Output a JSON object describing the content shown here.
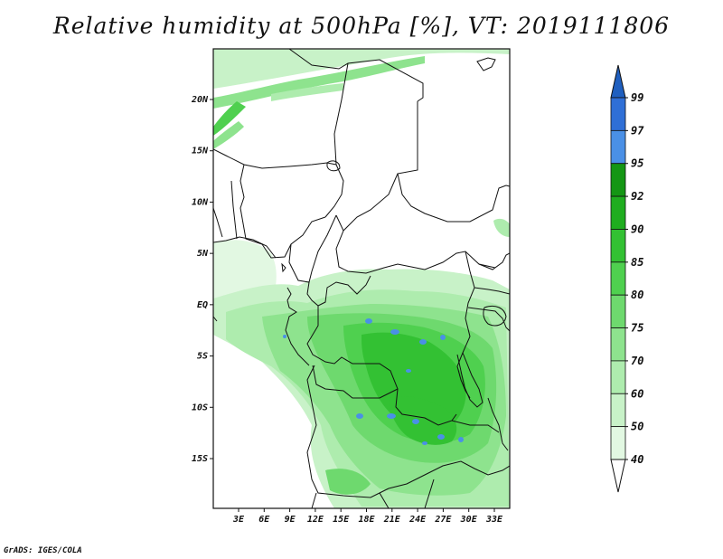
{
  "title": "Relative humidity at 500hPa [%], VT: 2019111806",
  "credit": "GrADS: IGES/COLA",
  "map": {
    "lat_ticks": [
      {
        "label": "20N",
        "lat": 20
      },
      {
        "label": "15N",
        "lat": 15
      },
      {
        "label": "10N",
        "lat": 10
      },
      {
        "label": "5N",
        "lat": 5
      },
      {
        "label": "EQ",
        "lat": 0
      },
      {
        "label": "5S",
        "lat": -5
      },
      {
        "label": "10S",
        "lat": -10
      },
      {
        "label": "15S",
        "lat": -15
      }
    ],
    "lon_ticks": [
      {
        "label": "3E",
        "lon": 3
      },
      {
        "label": "6E",
        "lon": 6
      },
      {
        "label": "9E",
        "lon": 9
      },
      {
        "label": "12E",
        "lon": 12
      },
      {
        "label": "15E",
        "lon": 15
      },
      {
        "label": "18E",
        "lon": 18
      },
      {
        "label": "21E",
        "lon": 21
      },
      {
        "label": "24E",
        "lon": 24
      },
      {
        "label": "27E",
        "lon": 27
      },
      {
        "label": "30E",
        "lon": 30
      },
      {
        "label": "33E",
        "lon": 33
      }
    ]
  },
  "colorbar": {
    "levels": [
      "99",
      "97",
      "95",
      "92",
      "90",
      "85",
      "80",
      "75",
      "70",
      "60",
      "50",
      "40"
    ],
    "colors": [
      "#2f6fd6",
      "#4a90e6",
      "#149614",
      "#1fad1f",
      "#33c133",
      "#4fd04f",
      "#6ed96e",
      "#8ee38e",
      "#aeecae",
      "#c8f2c8",
      "#e2f8e2"
    ],
    "top_arrow_color": "#1f5fbf"
  }
}
